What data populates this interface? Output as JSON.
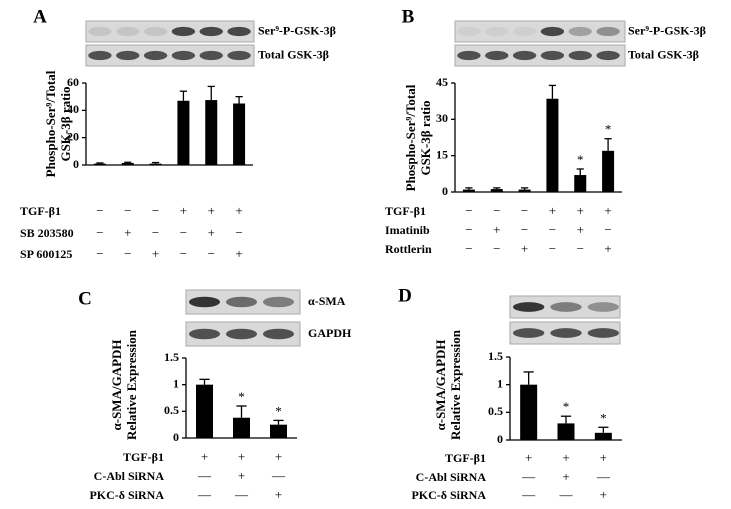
{
  "chart_data": [
    {
      "panel": "A",
      "type": "bar",
      "color": "#000000",
      "blot_labels": [
        "Ser⁹-P-GSK-3β",
        "Total GSK-3β"
      ],
      "ylabel": [
        "Phospho-Ser⁹/Total",
        "GSK-3β ratio"
      ],
      "values": [
        1,
        1.5,
        1,
        47,
        47.5,
        45
      ],
      "errors": [
        0.5,
        0.5,
        0.8,
        7,
        10,
        5
      ],
      "annotations": [
        null,
        null,
        null,
        null,
        null,
        null
      ],
      "ylim": [
        0,
        60
      ],
      "yticks": [
        0,
        20,
        40,
        60
      ],
      "conditions": [
        {
          "name": "TGF-β1",
          "signs": [
            "−",
            "−",
            "−",
            "+",
            "+",
            "+"
          ]
        },
        {
          "name": "SB 203580",
          "signs": [
            "−",
            "+",
            "−",
            "−",
            "+",
            "−"
          ]
        },
        {
          "name": "SP 600125",
          "signs": [
            "−",
            "−",
            "+",
            "−",
            "−",
            "+"
          ]
        }
      ]
    },
    {
      "panel": "B",
      "type": "bar",
      "color": "#000000",
      "blot_labels": [
        "Ser⁹-P-GSK-3β",
        "Total GSK-3β"
      ],
      "ylabel": [
        "Phospho-Ser⁹/Total",
        "GSK-3β ratio"
      ],
      "values": [
        1,
        1.2,
        1,
        38.5,
        7,
        17
      ],
      "errors": [
        0.7,
        0.5,
        0.7,
        5.5,
        2.5,
        5
      ],
      "annotations": [
        null,
        null,
        null,
        null,
        "*",
        "*"
      ],
      "ylim": [
        0,
        45
      ],
      "yticks": [
        0,
        15,
        30,
        45
      ],
      "conditions": [
        {
          "name": "TGF-β1",
          "signs": [
            "−",
            "−",
            "−",
            "+",
            "+",
            "+"
          ]
        },
        {
          "name": "Imatinib",
          "signs": [
            "−",
            "+",
            "−",
            "−",
            "+",
            "−"
          ]
        },
        {
          "name": "Rottlerin",
          "signs": [
            "−",
            "−",
            "+",
            "−",
            "−",
            "+"
          ]
        }
      ]
    },
    {
      "panel": "C",
      "type": "bar",
      "color": "#000000",
      "blot_labels": [
        "α-SMA",
        "GAPDH"
      ],
      "ylabel": [
        "α-SMA/GAPDH",
        "Relative Expression"
      ],
      "values": [
        1,
        0.38,
        0.25
      ],
      "errors": [
        0.1,
        0.22,
        0.08
      ],
      "annotations": [
        null,
        "*",
        "*"
      ],
      "ylim": [
        0,
        1.5
      ],
      "yticks": [
        0,
        0.5,
        1,
        1.5
      ],
      "conditions": [
        {
          "name": "TGF-β1",
          "signs": [
            "+",
            "+",
            "+"
          ]
        },
        {
          "name": "C-Abl SiRNA",
          "signs": [
            "—",
            "+",
            "—"
          ]
        },
        {
          "name": "PKC-δ SiRNA",
          "signs": [
            "—",
            "—",
            "+"
          ]
        }
      ]
    },
    {
      "panel": "D",
      "type": "bar",
      "color": "#000000",
      "ylabel": [
        "α-SMA/GAPDH",
        "Relative Expression"
      ],
      "values": [
        1,
        0.3,
        0.13
      ],
      "errors": [
        0.23,
        0.13,
        0.1
      ],
      "annotations": [
        null,
        "*",
        "*"
      ],
      "ylim": [
        0,
        1.5
      ],
      "yticks": [
        0,
        0.5,
        1,
        1.5
      ],
      "conditions": [
        {
          "name": "TGF-β1",
          "signs": [
            "+",
            "+",
            "+"
          ]
        },
        {
          "name": "C-Abl SiRNA",
          "signs": [
            "—",
            "+",
            "—"
          ]
        },
        {
          "name": "PKC-δ SiRNA",
          "signs": [
            "—",
            "—",
            "+"
          ]
        }
      ]
    }
  ]
}
